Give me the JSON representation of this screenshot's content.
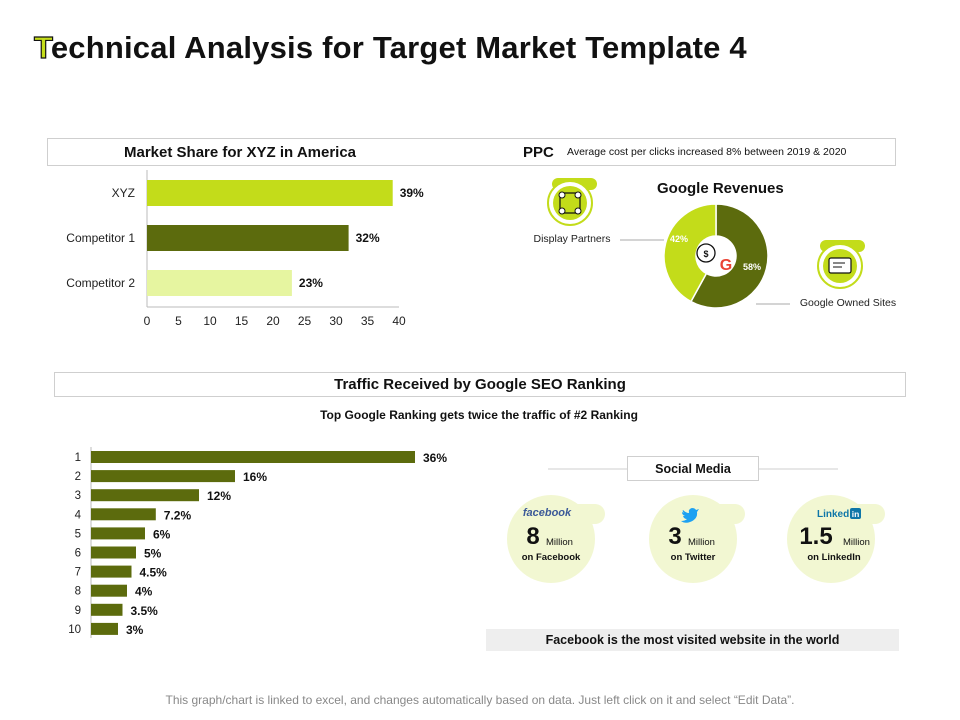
{
  "page": {
    "title_first": "T",
    "title_rest": "echnical Analysis for Target Market Template 4",
    "footer": "This graph/chart is linked to excel, and changes automatically based on data. Just left click on it and select “Edit Data”."
  },
  "ppc": {
    "label": "PPC",
    "description": "Average cost per clicks increased 8% between 2019 & 2020",
    "display_partners": "Display Partners",
    "google_owned": "Google Owned Sites"
  },
  "seo": {
    "header": "Traffic Received by Google SEO Ranking",
    "subtitle": "Top Google Ranking gets twice the traffic of #2 Ranking"
  },
  "social": {
    "header": "Social Media",
    "banner": "Facebook is the most visited website in the world",
    "items": [
      {
        "brand": "facebook",
        "number": "8",
        "unit": "Million",
        "caption": "on Facebook"
      },
      {
        "brand": "twitter",
        "number": "3",
        "unit": "Million",
        "caption": "on Twitter"
      },
      {
        "brand": "LinkedIn",
        "number": "1.5",
        "unit": "Million",
        "caption": "on LinkedIn"
      }
    ]
  },
  "colors": {
    "lime": "#c3dc1a",
    "olive": "#5c6b0d",
    "pale": "#e6f5a0",
    "cream": "#f2f7d2"
  },
  "chart_data": [
    {
      "type": "bar",
      "orientation": "horizontal",
      "title": "Market Share for XYZ in America",
      "categories": [
        "XYZ",
        "Competitor 1",
        "Competitor 2"
      ],
      "values": [
        39,
        32,
        23
      ],
      "labels": [
        "39%",
        "32%",
        "23%"
      ],
      "xlim": [
        0,
        40
      ],
      "xticks": [
        "0",
        "5",
        "10",
        "15",
        "20",
        "25",
        "30",
        "35",
        "40"
      ]
    },
    {
      "type": "pie",
      "title": "Google Revenues",
      "slices": [
        {
          "name": "Display Partners",
          "value": 42,
          "label": "42%"
        },
        {
          "name": "Google Owned Sites",
          "value": 58,
          "label": "58%"
        }
      ]
    },
    {
      "type": "bar",
      "orientation": "horizontal",
      "title": "Traffic Received by Google SEO Ranking",
      "categories": [
        "1",
        "2",
        "3",
        "4",
        "5",
        "6",
        "7",
        "8",
        "9",
        "10"
      ],
      "values": [
        36,
        16,
        12,
        7.2,
        6,
        5,
        4.5,
        4,
        3.5,
        3
      ],
      "labels": [
        "36%",
        "16%",
        "12%",
        "7.2%",
        "6%",
        "5%",
        "4.5%",
        "4%",
        "3.5%",
        "3%"
      ]
    }
  ]
}
